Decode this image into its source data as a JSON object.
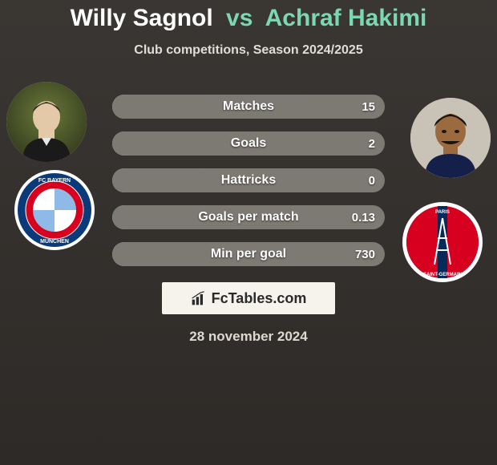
{
  "header": {
    "player1": "Willy Sagnol",
    "vs": "vs",
    "player2": "Achraf Hakimi",
    "subtitle": "Club competitions, Season 2024/2025"
  },
  "colors": {
    "player1_text": "#ffffff",
    "player2_text": "#7bd8b0",
    "bar_left": "#d9d5cd",
    "bar_right": "#7d7a73",
    "stat_text": "#ffffff",
    "background_top": "#3a3633",
    "background_bottom": "#2d2a27"
  },
  "stats": [
    {
      "label": "Matches",
      "left_val": "",
      "right_val": "15",
      "left_width": 50,
      "right_width": 100
    },
    {
      "label": "Goals",
      "left_val": "",
      "right_val": "2",
      "left_width": 50,
      "right_width": 100
    },
    {
      "label": "Hattricks",
      "left_val": "",
      "right_val": "0",
      "left_width": 50,
      "right_width": 100
    },
    {
      "label": "Goals per match",
      "left_val": "",
      "right_val": "0.13",
      "left_width": 50,
      "right_width": 100
    },
    {
      "label": "Min per goal",
      "left_val": "",
      "right_val": "730",
      "left_width": 50,
      "right_width": 100
    }
  ],
  "watermark": {
    "label": "FcTables.com"
  },
  "date": "28 november 2024",
  "left_club": {
    "name": "Bayern München",
    "ring_bg": "#ffffff",
    "ring1": "#0a3a7a",
    "ring2": "#d8001f",
    "center_pattern": [
      "#ffffff",
      "#8fb9e6"
    ]
  },
  "right_club": {
    "name": "Paris Saint-Germain",
    "ring_bg": "#ffffff",
    "outer": "#062a5a",
    "stripe": "#d8001f",
    "eiffel": "#ffffff"
  }
}
